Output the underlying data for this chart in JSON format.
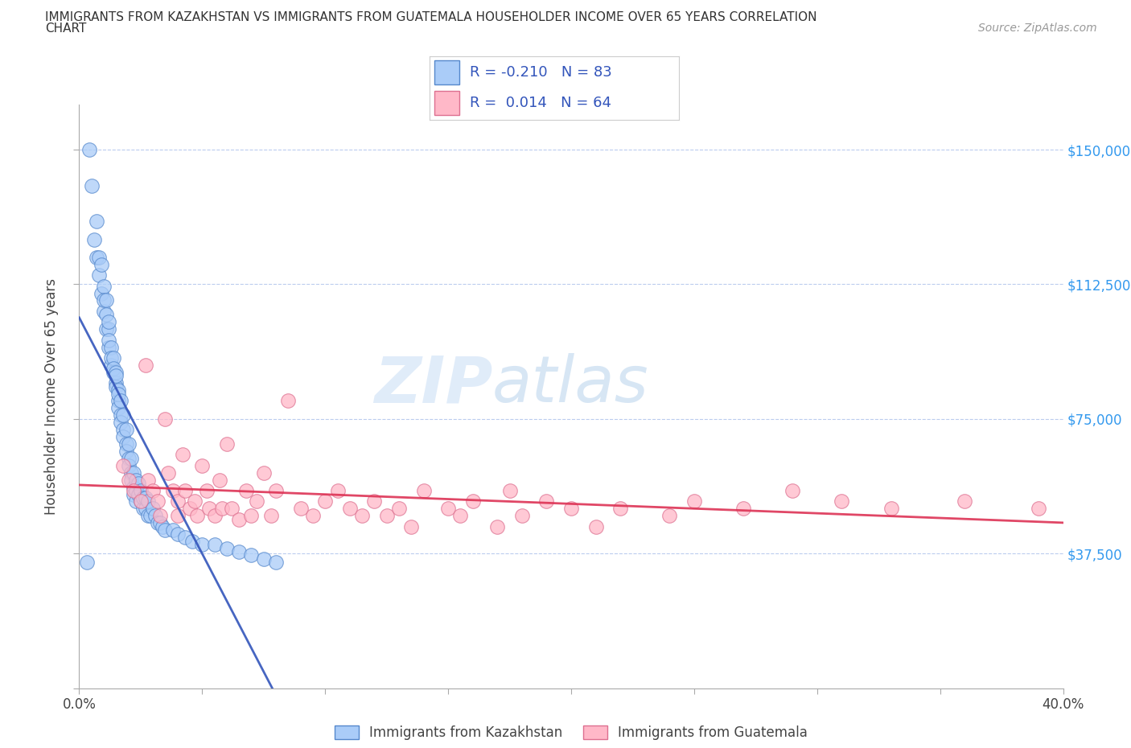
{
  "title_line1": "IMMIGRANTS FROM KAZAKHSTAN VS IMMIGRANTS FROM GUATEMALA HOUSEHOLDER INCOME OVER 65 YEARS CORRELATION",
  "title_line2": "CHART",
  "source_text": "Source: ZipAtlas.com",
  "ylabel": "Householder Income Over 65 years",
  "xlim": [
    0.0,
    0.4
  ],
  "ylim": [
    0,
    162500
  ],
  "yticks": [
    0,
    37500,
    75000,
    112500,
    150000
  ],
  "ytick_labels": [
    "",
    "$37,500",
    "$75,000",
    "$112,500",
    "$150,000"
  ],
  "xticks": [
    0.0,
    0.05,
    0.1,
    0.15,
    0.2,
    0.25,
    0.3,
    0.35,
    0.4
  ],
  "kazakhstan_color": "#aaccf8",
  "kazakhstan_edge": "#5588cc",
  "guatemala_color": "#ffb8c8",
  "guatemala_edge": "#dd7090",
  "trend_kaz_color": "#3355bb",
  "trend_guat_color": "#dd3355",
  "R_kaz": -0.21,
  "N_kaz": 83,
  "R_guat": 0.014,
  "N_guat": 64,
  "watermark_text": "ZIP",
  "watermark_text2": "atlas",
  "legend_label_kaz": "Immigrants from Kazakhstan",
  "legend_label_guat": "Immigrants from Guatemala",
  "kazakhstan_x": [
    0.003,
    0.004,
    0.005,
    0.006,
    0.007,
    0.007,
    0.008,
    0.008,
    0.009,
    0.009,
    0.01,
    0.01,
    0.01,
    0.011,
    0.011,
    0.011,
    0.012,
    0.012,
    0.012,
    0.012,
    0.013,
    0.013,
    0.013,
    0.014,
    0.014,
    0.014,
    0.015,
    0.015,
    0.015,
    0.015,
    0.016,
    0.016,
    0.016,
    0.016,
    0.017,
    0.017,
    0.017,
    0.018,
    0.018,
    0.018,
    0.019,
    0.019,
    0.019,
    0.02,
    0.02,
    0.02,
    0.021,
    0.021,
    0.021,
    0.022,
    0.022,
    0.022,
    0.023,
    0.023,
    0.023,
    0.024,
    0.024,
    0.025,
    0.025,
    0.026,
    0.026,
    0.027,
    0.027,
    0.028,
    0.028,
    0.029,
    0.03,
    0.031,
    0.032,
    0.033,
    0.034,
    0.035,
    0.038,
    0.04,
    0.043,
    0.046,
    0.05,
    0.055,
    0.06,
    0.065,
    0.07,
    0.075,
    0.08
  ],
  "kazakhstan_y": [
    35000,
    150000,
    140000,
    125000,
    120000,
    130000,
    115000,
    120000,
    110000,
    118000,
    105000,
    112000,
    108000,
    100000,
    108000,
    104000,
    95000,
    100000,
    97000,
    102000,
    90000,
    95000,
    92000,
    88000,
    92000,
    89000,
    85000,
    88000,
    84000,
    87000,
    80000,
    83000,
    78000,
    82000,
    76000,
    80000,
    74000,
    72000,
    76000,
    70000,
    68000,
    72000,
    66000,
    64000,
    68000,
    62000,
    60000,
    64000,
    58000,
    56000,
    60000,
    54000,
    55000,
    58000,
    52000,
    54000,
    57000,
    52000,
    55000,
    50000,
    53000,
    50000,
    53000,
    48000,
    52000,
    48000,
    50000,
    48000,
    46000,
    46000,
    45000,
    44000,
    44000,
    43000,
    42000,
    41000,
    40000,
    40000,
    39000,
    38000,
    37000,
    36000,
    35000
  ],
  "guatemala_x": [
    0.018,
    0.02,
    0.022,
    0.025,
    0.027,
    0.028,
    0.03,
    0.032,
    0.033,
    0.035,
    0.036,
    0.038,
    0.04,
    0.04,
    0.042,
    0.043,
    0.045,
    0.047,
    0.048,
    0.05,
    0.052,
    0.053,
    0.055,
    0.057,
    0.058,
    0.06,
    0.062,
    0.065,
    0.068,
    0.07,
    0.072,
    0.075,
    0.078,
    0.08,
    0.085,
    0.09,
    0.095,
    0.1,
    0.105,
    0.11,
    0.115,
    0.12,
    0.125,
    0.13,
    0.135,
    0.14,
    0.15,
    0.155,
    0.16,
    0.17,
    0.175,
    0.18,
    0.19,
    0.2,
    0.21,
    0.22,
    0.24,
    0.25,
    0.27,
    0.29,
    0.31,
    0.33,
    0.36,
    0.39
  ],
  "guatemala_y": [
    62000,
    58000,
    55000,
    52000,
    90000,
    58000,
    55000,
    52000,
    48000,
    75000,
    60000,
    55000,
    52000,
    48000,
    65000,
    55000,
    50000,
    52000,
    48000,
    62000,
    55000,
    50000,
    48000,
    58000,
    50000,
    68000,
    50000,
    47000,
    55000,
    48000,
    52000,
    60000,
    48000,
    55000,
    80000,
    50000,
    48000,
    52000,
    55000,
    50000,
    48000,
    52000,
    48000,
    50000,
    45000,
    55000,
    50000,
    48000,
    52000,
    45000,
    55000,
    48000,
    52000,
    50000,
    45000,
    50000,
    48000,
    52000,
    50000,
    55000,
    52000,
    50000,
    52000,
    50000
  ]
}
